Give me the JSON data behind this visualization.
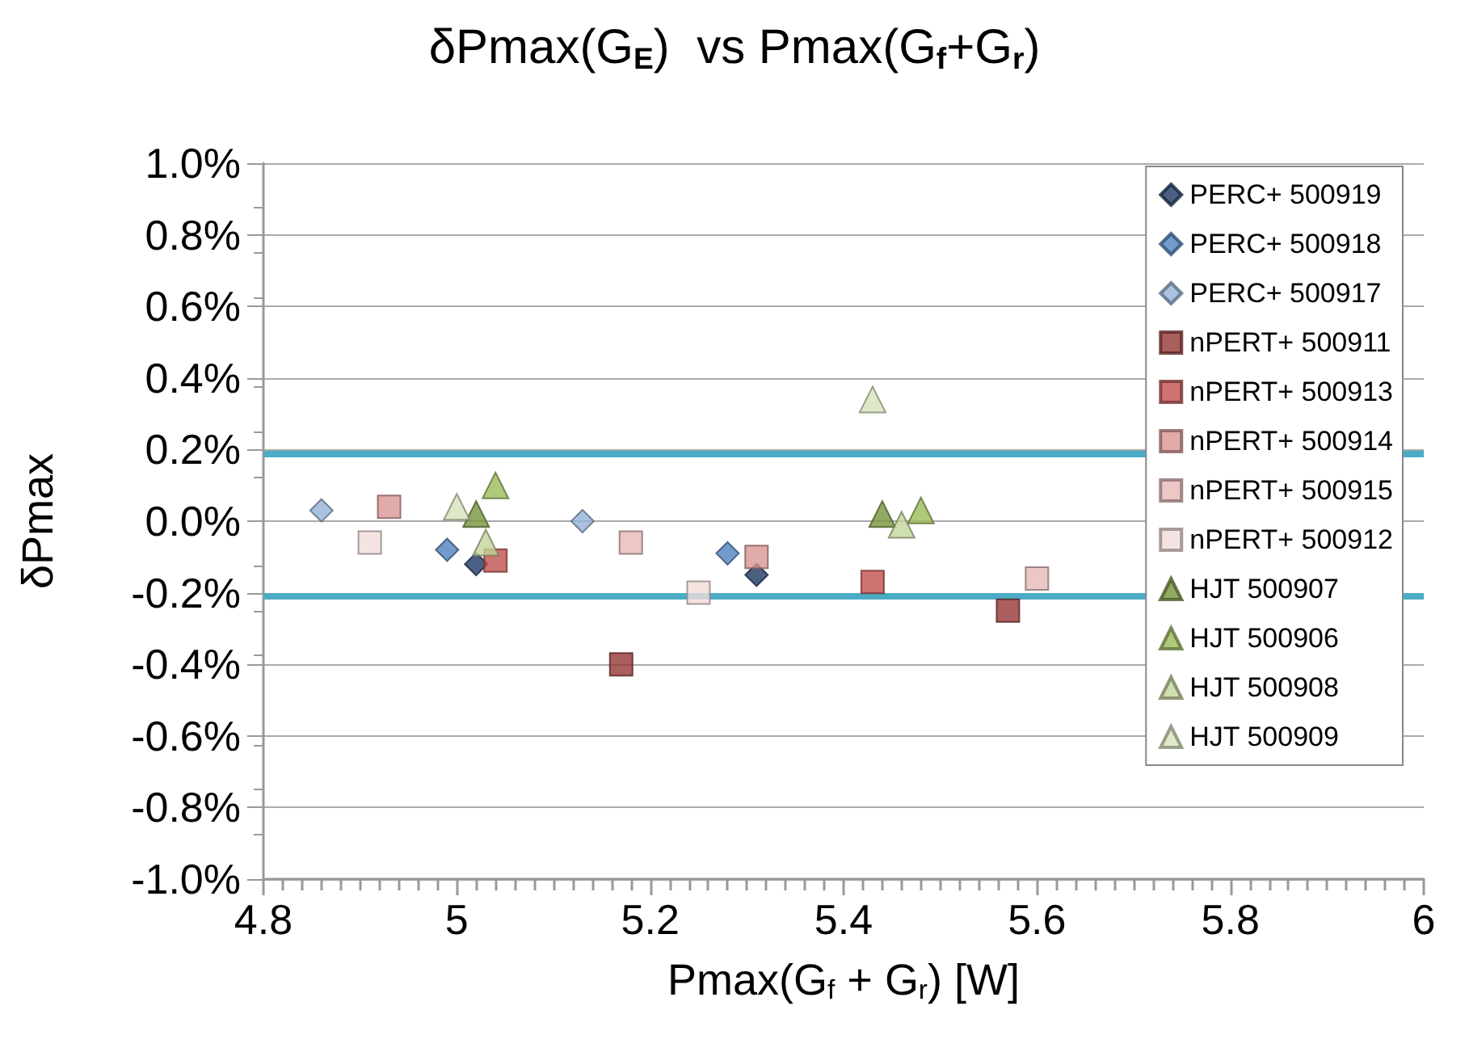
{
  "chart_data": {
    "type": "scatter",
    "title": "δPmax(G$_{E}$)  vs Pmax(G$_{f}$+G$_{r}$)",
    "xlabel": "Pmax(G$_{f}$ + G$_{r}$) [W]",
    "ylabel": "δPmax",
    "xlim": [
      4.8,
      6
    ],
    "xticks": [
      4.8,
      5,
      5.2,
      5.4,
      5.6,
      5.8,
      6
    ],
    "ylim": [
      -1.0,
      1.0
    ],
    "yticks": [
      {
        "value": -1.0,
        "label": "-1.0%"
      },
      {
        "value": -0.8,
        "label": "-0.8%"
      },
      {
        "value": -0.6,
        "label": "-0.6%"
      },
      {
        "value": -0.4,
        "label": "-0.4%"
      },
      {
        "value": -0.2,
        "label": "-0.2%"
      },
      {
        "value": 0,
        "label": "0.0%"
      },
      {
        "value": 0.2,
        "label": "0.2%"
      },
      {
        "value": 0.4,
        "label": "0.4%"
      },
      {
        "value": 0.6,
        "label": "0.6%"
      },
      {
        "value": 0.8,
        "label": "0.8%"
      },
      {
        "value": 1.0,
        "label": "1.0%"
      }
    ],
    "grid": "y",
    "legend": "top right",
    "ref_lines": [
      {
        "axis": "y",
        "value": 0.19,
        "color": "#4bacc6"
      },
      {
        "axis": "y",
        "value": -0.21,
        "color": "#4bacc6"
      }
    ],
    "series": [
      {
        "name": "PERC+ 500919",
        "color": "#1f3864",
        "marker": "diamond",
        "x": [
          5.02,
          5.31
        ],
        "values": [
          -0.12,
          -0.15
        ]
      },
      {
        "name": "PERC+ 500918",
        "color": "#4f81bd",
        "marker": "diamond",
        "x": [
          4.99,
          5.28
        ],
        "values": [
          -0.08,
          -0.09
        ]
      },
      {
        "name": "PERC+ 500917",
        "color": "#95b3d7",
        "marker": "diamond",
        "x": [
          4.86,
          5.13
        ],
        "values": [
          0.03,
          0.0
        ]
      },
      {
        "name": "nPERT+ 500911",
        "color": "#953735",
        "marker": "square",
        "x": [
          5.17,
          5.57
        ],
        "values": [
          -0.4,
          -0.25
        ]
      },
      {
        "name": "nPERT+ 500913",
        "color": "#c0504d",
        "marker": "square",
        "x": [
          5.04,
          5.43
        ],
        "values": [
          -0.11,
          -0.17
        ]
      },
      {
        "name": "nPERT+ 500914",
        "color": "#d99694",
        "marker": "square",
        "x": [
          4.93,
          5.31
        ],
        "values": [
          0.04,
          -0.1
        ]
      },
      {
        "name": "nPERT+ 500915",
        "color": "#e6b9b8",
        "marker": "square",
        "x": [
          5.18,
          5.6
        ],
        "values": [
          -0.06,
          -0.16
        ]
      },
      {
        "name": "nPERT+ 500912",
        "color": "#f2dcdb",
        "marker": "square",
        "x": [
          4.91,
          5.25
        ],
        "values": [
          -0.06,
          -0.2
        ]
      },
      {
        "name": "HJT 500907",
        "color": "#77933c",
        "marker": "triangle",
        "x": [
          5.02,
          5.44
        ],
        "values": [
          0.02,
          0.02
        ]
      },
      {
        "name": "HJT 500906",
        "color": "#9bbb59",
        "marker": "triangle",
        "x": [
          5.04,
          5.48
        ],
        "values": [
          0.1,
          0.03
        ]
      },
      {
        "name": "HJT 500908",
        "color": "#c3d69b",
        "marker": "triangle",
        "x": [
          5.03,
          5.46
        ],
        "values": [
          -0.06,
          -0.01
        ]
      },
      {
        "name": "HJT 500909",
        "color": "#d7e4bd",
        "marker": "triangle",
        "x": [
          5.0,
          5.43
        ],
        "values": [
          0.04,
          0.34
        ]
      }
    ]
  }
}
